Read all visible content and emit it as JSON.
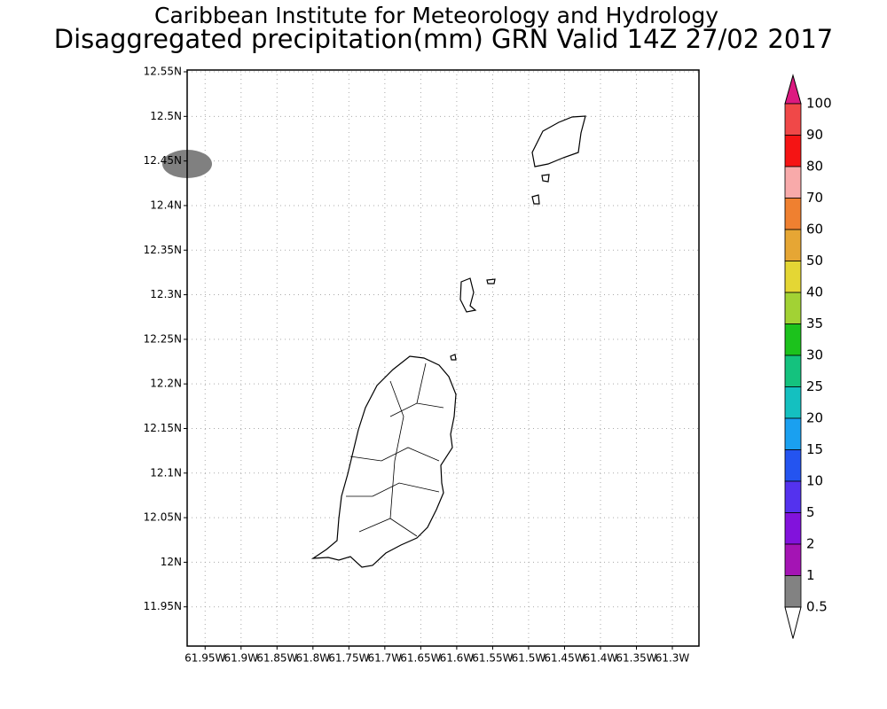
{
  "title": "Caribbean Institute for Meteorology and Hydrology",
  "subtitle": "Disaggregated precipitation(mm) GRN Valid 14Z 27/02 2017",
  "map": {
    "lonlim": [
      -61.975,
      -61.263
    ],
    "latlim": [
      11.906,
      12.552
    ],
    "grid": true,
    "lonticks": [
      {
        "value": -61.95,
        "label": "61.95W"
      },
      {
        "value": -61.9,
        "label": "61.9W"
      },
      {
        "value": -61.85,
        "label": "61.85W"
      },
      {
        "value": -61.8,
        "label": "61.8W"
      },
      {
        "value": -61.75,
        "label": "61.75W"
      },
      {
        "value": -61.7,
        "label": "61.7W"
      },
      {
        "value": -61.65,
        "label": "61.65W"
      },
      {
        "value": -61.6,
        "label": "61.6W"
      },
      {
        "value": -61.55,
        "label": "61.55W"
      },
      {
        "value": -61.5,
        "label": "61.5W"
      },
      {
        "value": -61.45,
        "label": "61.45W"
      },
      {
        "value": -61.4,
        "label": "61.4W"
      },
      {
        "value": -61.35,
        "label": "61.35W"
      },
      {
        "value": -61.3,
        "label": "61.3W"
      }
    ],
    "latticks": [
      {
        "value": 12.55,
        "label": "12.55N"
      },
      {
        "value": 12.5,
        "label": "12.5N"
      },
      {
        "value": 12.45,
        "label": "12.45N"
      },
      {
        "value": 12.4,
        "label": "12.4N"
      },
      {
        "value": 12.35,
        "label": "12.35N"
      },
      {
        "value": 12.3,
        "label": "12.3N"
      },
      {
        "value": 12.25,
        "label": "12.25N"
      },
      {
        "value": 12.2,
        "label": "12.2N"
      },
      {
        "value": 12.15,
        "label": "12.15N"
      },
      {
        "value": 12.1,
        "label": "12.1N"
      },
      {
        "value": 12.05,
        "label": "12.05N"
      },
      {
        "value": 12,
        "label": "12N"
      },
      {
        "value": 11.95,
        "label": "11.95N"
      }
    ]
  },
  "colorbar": {
    "levels": [
      100,
      90,
      80,
      70,
      60,
      50,
      40,
      35,
      30,
      25,
      20,
      15,
      10,
      5,
      2,
      1,
      0.5
    ],
    "colors": [
      "#dc1a80",
      "#f04848",
      "#f51414",
      "#f8aaaa",
      "#ef8030",
      "#e6a634",
      "#e4d634",
      "#a2d234",
      "#1cc21c",
      "#14c27e",
      "#14c0c0",
      "#1aa0f0",
      "#2454f0",
      "#5432ee",
      "#8212dc",
      "#a414b4",
      "#828282",
      "#ffffff"
    ]
  }
}
